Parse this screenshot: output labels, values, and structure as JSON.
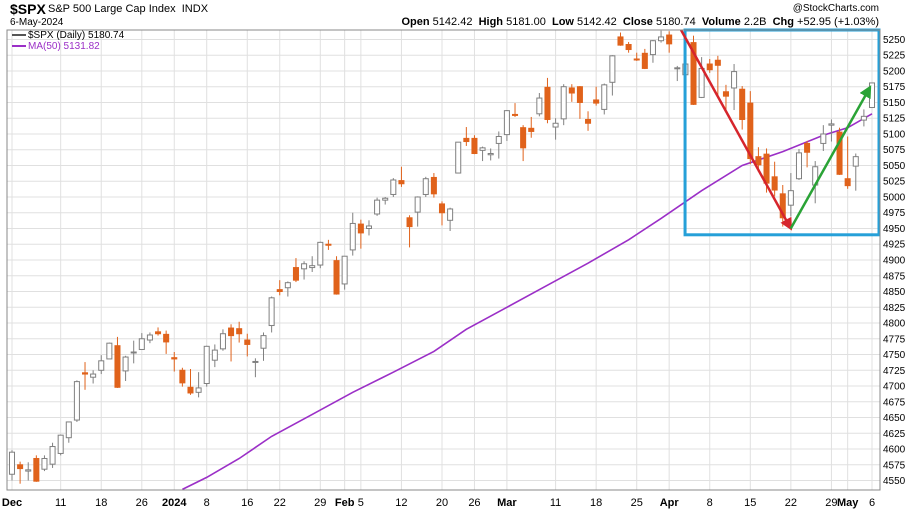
{
  "header": {
    "ticker": "$SPX",
    "name": "S&P 500 Large Cap Index",
    "exchange": "INDX",
    "date": "6-May-2024",
    "watermark": "@StockCharts.com",
    "open_label": "Open",
    "open": "5142.42",
    "high_label": "High",
    "high": "5181.00",
    "low_label": "Low",
    "low": "5142.42",
    "close_label": "Close",
    "close": "5180.74",
    "volume_label": "Volume",
    "volume": "2.2B",
    "chg_label": "Chg",
    "chg": "+52.95 (+1.03%)"
  },
  "legend": {
    "price": "$SPX (Daily) 5180.74",
    "ma": "MA(50) 5131.82"
  },
  "colors": {
    "up_candle": "#808080",
    "down_candle": "#e0621b",
    "ma_line": "#9b2fc7",
    "grid": "#e0e0e0",
    "highlight_box": "#26a0d8",
    "arrow_down": "#d6252c",
    "arrow_up": "#2aa336"
  },
  "chart_data": {
    "type": "candlestick",
    "y_axis_ticks": [
      4550,
      4575,
      4600,
      4625,
      4650,
      4675,
      4700,
      4725,
      4750,
      4775,
      4800,
      4825,
      4850,
      4875,
      4900,
      4925,
      4950,
      4975,
      5000,
      5025,
      5050,
      5075,
      5100,
      5125,
      5150,
      5175,
      5200,
      5225,
      5250
    ],
    "ylim": [
      4535,
      5265
    ],
    "x_axis_labels": [
      {
        "date": "2023-12-01",
        "label": "Dec",
        "bold": true
      },
      {
        "date": "2023-12-11",
        "label": "11",
        "bold": false
      },
      {
        "date": "2023-12-18",
        "label": "18",
        "bold": false
      },
      {
        "date": "2023-12-26",
        "label": "26",
        "bold": false
      },
      {
        "date": "2024-01-02",
        "label": "2024",
        "bold": true
      },
      {
        "date": "2024-01-08",
        "label": "8",
        "bold": false
      },
      {
        "date": "2024-01-16",
        "label": "16",
        "bold": false
      },
      {
        "date": "2024-01-22",
        "label": "22",
        "bold": false
      },
      {
        "date": "2024-01-29",
        "label": "29",
        "bold": false
      },
      {
        "date": "2024-02-01",
        "label": "Feb",
        "bold": true
      },
      {
        "date": "2024-02-05",
        "label": "5",
        "bold": false
      },
      {
        "date": "2024-02-12",
        "label": "12",
        "bold": false
      },
      {
        "date": "2024-02-20",
        "label": "20",
        "bold": false
      },
      {
        "date": "2024-02-26",
        "label": "26",
        "bold": false
      },
      {
        "date": "2024-03-01",
        "label": "Mar",
        "bold": true
      },
      {
        "date": "2024-03-11",
        "label": "11",
        "bold": false
      },
      {
        "date": "2024-03-18",
        "label": "18",
        "bold": false
      },
      {
        "date": "2024-03-25",
        "label": "25",
        "bold": false
      },
      {
        "date": "2024-04-01",
        "label": "Apr",
        "bold": true
      },
      {
        "date": "2024-04-08",
        "label": "8",
        "bold": false
      },
      {
        "date": "2024-04-15",
        "label": "15",
        "bold": false
      },
      {
        "date": "2024-04-22",
        "label": "22",
        "bold": false
      },
      {
        "date": "2024-04-29",
        "label": "29",
        "bold": false
      },
      {
        "date": "2024-05-01",
        "label": "May",
        "bold": true
      },
      {
        "date": "2024-05-06",
        "label": "6",
        "bold": false
      }
    ],
    "candles": [
      {
        "d": "2023-12-01",
        "o": 4560,
        "h": 4598,
        "l": 4550,
        "c": 4595
      },
      {
        "d": "2023-12-04",
        "o": 4575,
        "h": 4580,
        "l": 4545,
        "c": 4569
      },
      {
        "d": "2023-12-05",
        "o": 4565,
        "h": 4579,
        "l": 4550,
        "c": 4567
      },
      {
        "d": "2023-12-06",
        "o": 4585,
        "h": 4590,
        "l": 4548,
        "c": 4549
      },
      {
        "d": "2023-12-07",
        "o": 4568,
        "h": 4590,
        "l": 4565,
        "c": 4585
      },
      {
        "d": "2023-12-08",
        "o": 4576,
        "h": 4610,
        "l": 4570,
        "c": 4604
      },
      {
        "d": "2023-12-11",
        "o": 4593,
        "h": 4623,
        "l": 4590,
        "c": 4622
      },
      {
        "d": "2023-12-12",
        "o": 4618,
        "h": 4643,
        "l": 4610,
        "c": 4643
      },
      {
        "d": "2023-12-13",
        "o": 4646,
        "h": 4709,
        "l": 4643,
        "c": 4707
      },
      {
        "d": "2023-12-14",
        "o": 4721,
        "h": 4738,
        "l": 4694,
        "c": 4719
      },
      {
        "d": "2023-12-15",
        "o": 4714,
        "h": 4725,
        "l": 4704,
        "c": 4719
      },
      {
        "d": "2023-12-18",
        "o": 4725,
        "h": 4749,
        "l": 4719,
        "c": 4740
      },
      {
        "d": "2023-12-19",
        "o": 4743,
        "h": 4769,
        "l": 4743,
        "c": 4768
      },
      {
        "d": "2023-12-20",
        "o": 4764,
        "h": 4778,
        "l": 4697,
        "c": 4698
      },
      {
        "d": "2023-12-21",
        "o": 4724,
        "h": 4748,
        "l": 4708,
        "c": 4746
      },
      {
        "d": "2023-12-22",
        "o": 4753,
        "h": 4772,
        "l": 4736,
        "c": 4754
      },
      {
        "d": "2023-12-26",
        "o": 4758,
        "h": 4784,
        "l": 4758,
        "c": 4775
      },
      {
        "d": "2023-12-27",
        "o": 4773,
        "h": 4785,
        "l": 4768,
        "c": 4781
      },
      {
        "d": "2023-12-28",
        "o": 4786,
        "h": 4793,
        "l": 4780,
        "c": 4783
      },
      {
        "d": "2023-12-29",
        "o": 4782,
        "h": 4788,
        "l": 4751,
        "c": 4770
      },
      {
        "d": "2024-01-02",
        "o": 4745,
        "h": 4754,
        "l": 4723,
        "c": 4743
      },
      {
        "d": "2024-01-03",
        "o": 4725,
        "h": 4729,
        "l": 4699,
        "c": 4705
      },
      {
        "d": "2024-01-04",
        "o": 4698,
        "h": 4727,
        "l": 4686,
        "c": 4689
      },
      {
        "d": "2024-01-05",
        "o": 4690,
        "h": 4722,
        "l": 4682,
        "c": 4697
      },
      {
        "d": "2024-01-08",
        "o": 4704,
        "h": 4764,
        "l": 4699,
        "c": 4763
      },
      {
        "d": "2024-01-09",
        "o": 4741,
        "h": 4766,
        "l": 4730,
        "c": 4757
      },
      {
        "d": "2024-01-10",
        "o": 4759,
        "h": 4790,
        "l": 4756,
        "c": 4783
      },
      {
        "d": "2024-01-11",
        "o": 4792,
        "h": 4798,
        "l": 4739,
        "c": 4780
      },
      {
        "d": "2024-01-12",
        "o": 4791,
        "h": 4802,
        "l": 4769,
        "c": 4783
      },
      {
        "d": "2024-01-16",
        "o": 4773,
        "h": 4783,
        "l": 4747,
        "c": 4766
      },
      {
        "d": "2024-01-17",
        "o": 4739,
        "h": 4744,
        "l": 4714,
        "c": 4739
      },
      {
        "d": "2024-01-18",
        "o": 4760,
        "h": 4785,
        "l": 4740,
        "c": 4780
      },
      {
        "d": "2024-01-19",
        "o": 4796,
        "h": 4842,
        "l": 4785,
        "c": 4840
      },
      {
        "d": "2024-01-22",
        "o": 4853,
        "h": 4868,
        "l": 4844,
        "c": 4850
      },
      {
        "d": "2024-01-23",
        "o": 4856,
        "h": 4866,
        "l": 4842,
        "c": 4864
      },
      {
        "d": "2024-01-24",
        "o": 4888,
        "h": 4903,
        "l": 4865,
        "c": 4868
      },
      {
        "d": "2024-01-25",
        "o": 4886,
        "h": 4898,
        "l": 4869,
        "c": 4894
      },
      {
        "d": "2024-01-26",
        "o": 4888,
        "h": 4906,
        "l": 4881,
        "c": 4891
      },
      {
        "d": "2024-01-29",
        "o": 4892,
        "h": 4929,
        "l": 4887,
        "c": 4928
      },
      {
        "d": "2024-01-30",
        "o": 4925,
        "h": 4932,
        "l": 4916,
        "c": 4924
      },
      {
        "d": "2024-01-31",
        "o": 4899,
        "h": 4906,
        "l": 4845,
        "c": 4846
      },
      {
        "d": "2024-02-01",
        "o": 4862,
        "h": 4906,
        "l": 4853,
        "c": 4906
      },
      {
        "d": "2024-02-02",
        "o": 4916,
        "h": 4975,
        "l": 4907,
        "c": 4958
      },
      {
        "d": "2024-02-05",
        "o": 4957,
        "h": 4964,
        "l": 4918,
        "c": 4943
      },
      {
        "d": "2024-02-06",
        "o": 4950,
        "h": 4963,
        "l": 4939,
        "c": 4954
      },
      {
        "d": "2024-02-07",
        "o": 4973,
        "h": 4999,
        "l": 4970,
        "c": 4995
      },
      {
        "d": "2024-02-08",
        "o": 4995,
        "h": 5000,
        "l": 4988,
        "c": 4998
      },
      {
        "d": "2024-02-09",
        "o": 5004,
        "h": 5030,
        "l": 5000,
        "c": 5027
      },
      {
        "d": "2024-02-12",
        "o": 5026,
        "h": 5048,
        "l": 5016,
        "c": 5021
      },
      {
        "d": "2024-02-13",
        "o": 4967,
        "h": 4971,
        "l": 4920,
        "c": 4953
      },
      {
        "d": "2024-02-14",
        "o": 4976,
        "h": 5001,
        "l": 4953,
        "c": 5000
      },
      {
        "d": "2024-02-15",
        "o": 5004,
        "h": 5032,
        "l": 5000,
        "c": 5029
      },
      {
        "d": "2024-02-16",
        "o": 5031,
        "h": 5038,
        "l": 4999,
        "c": 5005
      },
      {
        "d": "2024-02-20",
        "o": 4989,
        "h": 4993,
        "l": 4955,
        "c": 4975
      },
      {
        "d": "2024-02-21",
        "o": 4963,
        "h": 4983,
        "l": 4946,
        "c": 4981
      },
      {
        "d": "2024-02-22",
        "o": 5038,
        "h": 5087,
        "l": 5038,
        "c": 5087
      },
      {
        "d": "2024-02-23",
        "o": 5093,
        "h": 5111,
        "l": 5081,
        "c": 5088
      },
      {
        "d": "2024-02-26",
        "o": 5093,
        "h": 5098,
        "l": 5068,
        "c": 5069
      },
      {
        "d": "2024-02-27",
        "o": 5074,
        "h": 5080,
        "l": 5057,
        "c": 5078
      },
      {
        "d": "2024-02-28",
        "o": 5067,
        "h": 5077,
        "l": 5058,
        "c": 5069
      },
      {
        "d": "2024-02-29",
        "o": 5085,
        "h": 5104,
        "l": 5061,
        "c": 5096
      },
      {
        "d": "2024-03-01",
        "o": 5099,
        "h": 5138,
        "l": 5089,
        "c": 5137
      },
      {
        "d": "2024-03-04",
        "o": 5131,
        "h": 5149,
        "l": 5127,
        "c": 5130
      },
      {
        "d": "2024-03-05",
        "o": 5110,
        "h": 5114,
        "l": 5057,
        "c": 5078
      },
      {
        "d": "2024-03-06",
        "o": 5109,
        "h": 5127,
        "l": 5094,
        "c": 5104
      },
      {
        "d": "2024-03-07",
        "o": 5132,
        "h": 5165,
        "l": 5128,
        "c": 5157
      },
      {
        "d": "2024-03-08",
        "o": 5174,
        "h": 5189,
        "l": 5117,
        "c": 5123
      },
      {
        "d": "2024-03-11",
        "o": 5111,
        "h": 5125,
        "l": 5091,
        "c": 5117
      },
      {
        "d": "2024-03-12",
        "o": 5124,
        "h": 5179,
        "l": 5114,
        "c": 5175
      },
      {
        "d": "2024-03-13",
        "o": 5173,
        "h": 5179,
        "l": 5151,
        "c": 5165
      },
      {
        "d": "2024-03-14",
        "o": 5175,
        "h": 5176,
        "l": 5124,
        "c": 5150
      },
      {
        "d": "2024-03-15",
        "o": 5123,
        "h": 5136,
        "l": 5105,
        "c": 5117
      },
      {
        "d": "2024-03-18",
        "o": 5154,
        "h": 5175,
        "l": 5145,
        "c": 5149
      },
      {
        "d": "2024-03-19",
        "o": 5139,
        "h": 5180,
        "l": 5131,
        "c": 5178
      },
      {
        "d": "2024-03-20",
        "o": 5182,
        "h": 5225,
        "l": 5161,
        "c": 5224
      },
      {
        "d": "2024-03-21",
        "o": 5254,
        "h": 5261,
        "l": 5240,
        "c": 5241
      },
      {
        "d": "2024-03-22",
        "o": 5242,
        "h": 5246,
        "l": 5229,
        "c": 5234
      },
      {
        "d": "2024-03-25",
        "o": 5219,
        "h": 5229,
        "l": 5216,
        "c": 5218
      },
      {
        "d": "2024-03-26",
        "o": 5228,
        "h": 5235,
        "l": 5203,
        "c": 5204
      },
      {
        "d": "2024-03-27",
        "o": 5226,
        "h": 5249,
        "l": 5213,
        "c": 5248
      },
      {
        "d": "2024-03-28",
        "o": 5248,
        "h": 5264,
        "l": 5245,
        "c": 5254
      },
      {
        "d": "2024-04-01",
        "o": 5257,
        "h": 5263,
        "l": 5229,
        "c": 5243
      },
      {
        "d": "2024-04-02",
        "o": 5204,
        "h": 5208,
        "l": 5184,
        "c": 5205
      },
      {
        "d": "2024-04-03",
        "o": 5194,
        "h": 5228,
        "l": 5194,
        "c": 5211
      },
      {
        "d": "2024-04-04",
        "o": 5245,
        "h": 5256,
        "l": 5146,
        "c": 5147
      },
      {
        "d": "2024-04-05",
        "o": 5158,
        "h": 5222,
        "l": 5157,
        "c": 5204
      },
      {
        "d": "2024-04-08",
        "o": 5211,
        "h": 5219,
        "l": 5197,
        "c": 5202
      },
      {
        "d": "2024-04-09",
        "o": 5217,
        "h": 5224,
        "l": 5160,
        "c": 5209
      },
      {
        "d": "2024-04-10",
        "o": 5167,
        "h": 5178,
        "l": 5138,
        "c": 5160
      },
      {
        "d": "2024-04-11",
        "o": 5173,
        "h": 5211,
        "l": 5138,
        "c": 5199
      },
      {
        "d": "2024-04-12",
        "o": 5171,
        "h": 5176,
        "l": 5107,
        "c": 5123
      },
      {
        "d": "2024-04-15",
        "o": 5149,
        "h": 5168,
        "l": 5052,
        "c": 5061
      },
      {
        "d": "2024-04-16",
        "o": 5064,
        "h": 5079,
        "l": 5040,
        "c": 5051
      },
      {
        "d": "2024-04-17",
        "o": 5068,
        "h": 5077,
        "l": 5007,
        "c": 5022
      },
      {
        "d": "2024-04-18",
        "o": 5032,
        "h": 5056,
        "l": 5001,
        "c": 5011
      },
      {
        "d": "2024-04-19",
        "o": 5005,
        "h": 5019,
        "l": 4953,
        "c": 4967
      },
      {
        "d": "2024-04-22",
        "o": 4987,
        "h": 5038,
        "l": 4969,
        "c": 5010
      },
      {
        "d": "2024-04-23",
        "o": 5029,
        "h": 5076,
        "l": 5027,
        "c": 5070
      },
      {
        "d": "2024-04-24",
        "o": 5085,
        "h": 5089,
        "l": 5047,
        "c": 5071
      },
      {
        "d": "2024-04-25",
        "o": 5019,
        "h": 5057,
        "l": 4990,
        "c": 5048
      },
      {
        "d": "2024-04-26",
        "o": 5085,
        "h": 5114,
        "l": 5073,
        "c": 5100
      },
      {
        "d": "2024-04-29",
        "o": 5114,
        "h": 5123,
        "l": 5088,
        "c": 5116
      },
      {
        "d": "2024-04-30",
        "o": 5103,
        "h": 5110,
        "l": 5035,
        "c": 5036
      },
      {
        "d": "2024-05-01",
        "o": 5029,
        "h": 5096,
        "l": 5013,
        "c": 5018
      },
      {
        "d": "2024-05-02",
        "o": 5049,
        "h": 5069,
        "l": 5010,
        "c": 5064
      },
      {
        "d": "2024-05-03",
        "o": 5122,
        "h": 5139,
        "l": 5112,
        "c": 5128
      },
      {
        "d": "2024-05-06",
        "o": 5142,
        "h": 5181,
        "l": 5142,
        "c": 5181
      }
    ],
    "ma50": [
      {
        "d": "2024-01-03",
        "v": 4536
      },
      {
        "d": "2024-01-08",
        "v": 4555
      },
      {
        "d": "2024-01-12",
        "v": 4585
      },
      {
        "d": "2024-01-19",
        "v": 4620
      },
      {
        "d": "2024-01-26",
        "v": 4655
      },
      {
        "d": "2024-02-02",
        "v": 4690
      },
      {
        "d": "2024-02-09",
        "v": 4722
      },
      {
        "d": "2024-02-16",
        "v": 4755
      },
      {
        "d": "2024-02-23",
        "v": 4790
      },
      {
        "d": "2024-03-01",
        "v": 4825
      },
      {
        "d": "2024-03-08",
        "v": 4860
      },
      {
        "d": "2024-03-15",
        "v": 4895
      },
      {
        "d": "2024-03-22",
        "v": 4932
      },
      {
        "d": "2024-03-28",
        "v": 4966
      },
      {
        "d": "2024-04-05",
        "v": 5010
      },
      {
        "d": "2024-04-12",
        "v": 5050
      },
      {
        "d": "2024-04-19",
        "v": 5072
      },
      {
        "d": "2024-04-26",
        "v": 5098
      },
      {
        "d": "2024-05-01",
        "v": 5110
      },
      {
        "d": "2024-05-06",
        "v": 5132
      }
    ],
    "annotations": {
      "highlight_box": {
        "from": "2024-03-28",
        "to": "2024-05-06",
        "top": 5265,
        "bottom": 4940
      },
      "arrow_down": {
        "from_d": "2024-03-28",
        "from_v": 5265,
        "to_d": "2024-04-19",
        "to_v": 4950
      },
      "arrow_up": {
        "from_d": "2024-04-19",
        "from_v": 4950,
        "to_d": "2024-05-06",
        "to_v": 5174
      }
    }
  }
}
